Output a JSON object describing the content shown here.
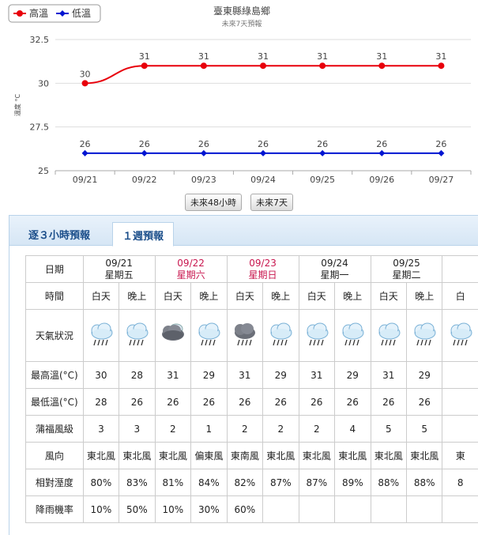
{
  "chart": {
    "title": "臺東縣綠島鄉",
    "subtitle": "未來7天預報",
    "legend_high": "高溫",
    "legend_low": "低溫",
    "ylabel": "溫度 °C",
    "high_color": "#e8000b",
    "low_color": "#0015d1"
  },
  "chart_data": {
    "type": "line",
    "categories": [
      "09/21",
      "09/22",
      "09/23",
      "09/24",
      "09/25",
      "09/26",
      "09/27"
    ],
    "series": [
      {
        "name": "高溫",
        "values": [
          30,
          31,
          31,
          31,
          31,
          31,
          31
        ]
      },
      {
        "name": "低溫",
        "values": [
          26,
          26,
          26,
          26,
          26,
          26,
          26
        ]
      }
    ],
    "yticks": [
      "32.5",
      "30",
      "27.5",
      "25"
    ],
    "ylim": [
      25,
      32.5
    ]
  },
  "range_buttons": [
    "未來48小時",
    "未來7天"
  ],
  "tabs": [
    "逐３小時預報",
    "１週預報"
  ],
  "table": {
    "labels": {
      "date": "日期",
      "time": "時間",
      "weather": "天氣狀況",
      "max": "最高溫(°C)",
      "min": "最低溫(°C)",
      "beaufort": "蒲福風級",
      "wind": "風向",
      "humidity": "相對溼度",
      "rain": "降雨機率"
    },
    "days": [
      {
        "date": "09/21",
        "weekday": "星期五",
        "red": false
      },
      {
        "date": "09/22",
        "weekday": "星期六",
        "red": true
      },
      {
        "date": "09/23",
        "weekday": "星期日",
        "red": true
      },
      {
        "date": "09/24",
        "weekday": "星期一",
        "red": false
      },
      {
        "date": "09/25",
        "weekday": "星期二",
        "red": false
      }
    ],
    "periods": [
      "白天",
      "晚上",
      "白天",
      "晚上",
      "白天",
      "晚上",
      "白天",
      "晚上",
      "白天",
      "晚上",
      "白"
    ],
    "icons": [
      "cloud-rain-icon",
      "cloud-rain-icon",
      "dark-cloud-icon",
      "cloud-rain-icon",
      "thunderstorm-icon",
      "cloud-rain-icon",
      "cloud-rain-icon",
      "cloud-rain-icon",
      "cloud-rain-icon",
      "cloud-rain-icon",
      "cloud-rain-icon"
    ],
    "max": [
      "30",
      "28",
      "31",
      "29",
      "31",
      "29",
      "31",
      "29",
      "31",
      "29",
      ""
    ],
    "min": [
      "28",
      "26",
      "26",
      "26",
      "26",
      "26",
      "26",
      "26",
      "26",
      "26",
      ""
    ],
    "beaufort": [
      "3",
      "3",
      "2",
      "1",
      "2",
      "2",
      "2",
      "4",
      "5",
      "5",
      ""
    ],
    "wind": [
      "東北風",
      "東北風",
      "東北風",
      "偏東風",
      "東南風",
      "東北風",
      "東北風",
      "東北風",
      "東北風",
      "東北風",
      "東"
    ],
    "humidity": [
      "80%",
      "83%",
      "81%",
      "84%",
      "82%",
      "87%",
      "87%",
      "89%",
      "88%",
      "88%",
      "8"
    ],
    "rain": [
      "10%",
      "50%",
      "10%",
      "30%",
      "60%",
      "",
      "",
      "",
      "",
      "",
      ""
    ]
  }
}
